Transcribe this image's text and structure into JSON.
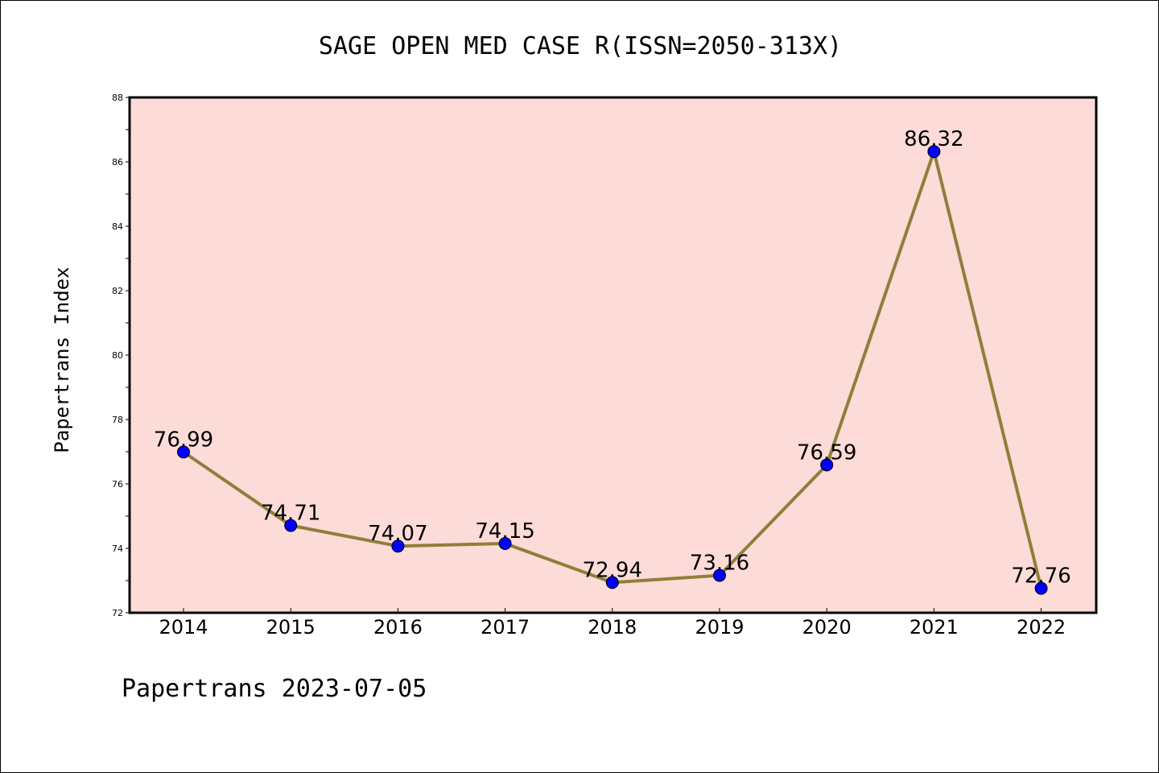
{
  "chart_data": {
    "type": "line",
    "title": "SAGE OPEN MED CASE R(ISSN=2050-313X)",
    "xlabel": "",
    "ylabel": "Papertrans Index",
    "categories": [
      "2014",
      "2015",
      "2016",
      "2017",
      "2018",
      "2019",
      "2020",
      "2021",
      "2022"
    ],
    "series": [
      {
        "values": [
          76.99,
          74.71,
          74.07,
          74.15,
          72.94,
          73.16,
          76.59,
          86.32,
          72.76
        ],
        "labels": [
          "76.99",
          "74.71",
          "74.07",
          "74.15",
          "72.94",
          "73.16",
          "76.59",
          "86.32",
          "72.76"
        ]
      }
    ],
    "ylim": [
      72,
      88
    ],
    "yticks": [
      "72",
      "74",
      "76",
      "78",
      "80",
      "82",
      "84",
      "86",
      "88"
    ],
    "grid": false,
    "legend": "none",
    "colors": {
      "plot_background": "#fddbd8",
      "line": "#8f7f3a",
      "marker": "#0000ff"
    }
  },
  "footer": {
    "text": "Papertrans 2023-07-05"
  }
}
